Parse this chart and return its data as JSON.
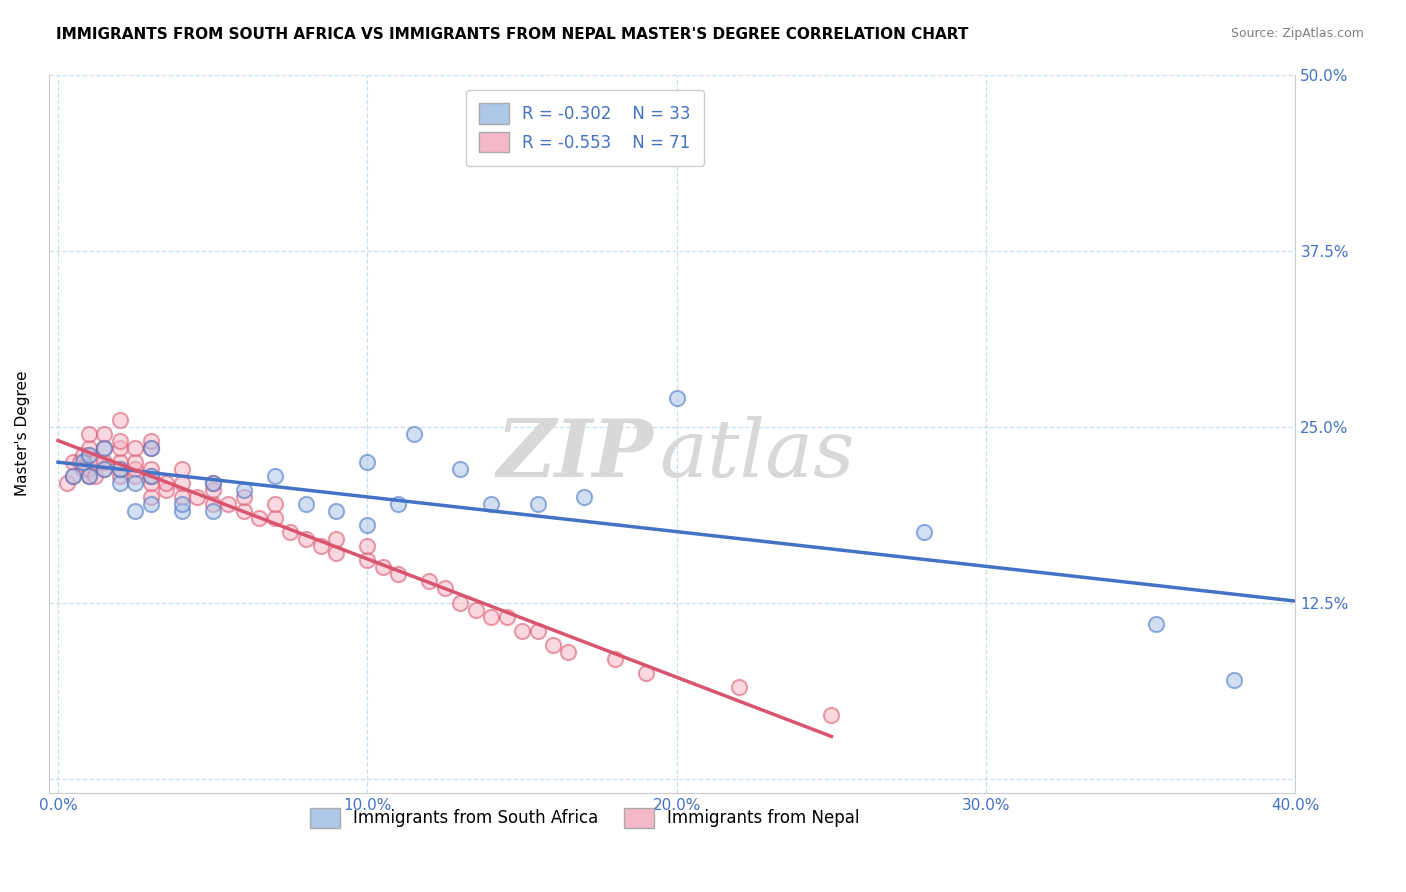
{
  "title": "IMMIGRANTS FROM SOUTH AFRICA VS IMMIGRANTS FROM NEPAL MASTER'S DEGREE CORRELATION CHART",
  "source": "Source: ZipAtlas.com",
  "ylabel": "Master's Degree",
  "xlim": [
    -0.003,
    0.4
  ],
  "ylim": [
    -0.01,
    0.5
  ],
  "xticks": [
    0.0,
    0.1,
    0.2,
    0.3,
    0.4
  ],
  "xticklabels": [
    "0.0%",
    "10.0%",
    "20.0%",
    "30.0%",
    "40.0%"
  ],
  "yticks": [
    0.0,
    0.125,
    0.25,
    0.375,
    0.5
  ],
  "yticklabels_right": [
    "",
    "12.5%",
    "25.0%",
    "37.5%",
    "50.0%"
  ],
  "legend_r_sa": "-0.302",
  "legend_n_sa": "33",
  "legend_r_np": "-0.553",
  "legend_n_np": "71",
  "color_sa": "#aec6e8",
  "color_np": "#f5b8c8",
  "line_color_sa": "#4472c4",
  "line_color_np": "#d9546e",
  "background": "#ffffff",
  "grid_color": "#c8dff0",
  "sa_x": [
    0.005,
    0.008,
    0.01,
    0.01,
    0.015,
    0.015,
    0.02,
    0.02,
    0.025,
    0.025,
    0.03,
    0.03,
    0.03,
    0.04,
    0.04,
    0.05,
    0.05,
    0.06,
    0.07,
    0.08,
    0.09,
    0.1,
    0.1,
    0.11,
    0.115,
    0.13,
    0.14,
    0.155,
    0.17,
    0.2,
    0.28,
    0.355,
    0.38
  ],
  "sa_y": [
    0.215,
    0.225,
    0.215,
    0.23,
    0.22,
    0.235,
    0.21,
    0.22,
    0.19,
    0.21,
    0.195,
    0.215,
    0.235,
    0.19,
    0.195,
    0.19,
    0.21,
    0.205,
    0.215,
    0.195,
    0.19,
    0.18,
    0.225,
    0.195,
    0.245,
    0.22,
    0.195,
    0.195,
    0.2,
    0.27,
    0.175,
    0.11,
    0.07
  ],
  "np_x": [
    0.003,
    0.005,
    0.005,
    0.007,
    0.008,
    0.008,
    0.01,
    0.01,
    0.01,
    0.01,
    0.01,
    0.012,
    0.012,
    0.015,
    0.015,
    0.015,
    0.015,
    0.02,
    0.02,
    0.02,
    0.02,
    0.02,
    0.02,
    0.025,
    0.025,
    0.025,
    0.025,
    0.03,
    0.03,
    0.03,
    0.03,
    0.03,
    0.03,
    0.035,
    0.035,
    0.04,
    0.04,
    0.04,
    0.045,
    0.05,
    0.05,
    0.05,
    0.055,
    0.06,
    0.06,
    0.065,
    0.07,
    0.07,
    0.075,
    0.08,
    0.085,
    0.09,
    0.09,
    0.1,
    0.1,
    0.105,
    0.11,
    0.12,
    0.125,
    0.13,
    0.135,
    0.14,
    0.145,
    0.15,
    0.155,
    0.16,
    0.165,
    0.18,
    0.19,
    0.22,
    0.25
  ],
  "np_y": [
    0.21,
    0.215,
    0.225,
    0.225,
    0.22,
    0.23,
    0.215,
    0.22,
    0.23,
    0.235,
    0.245,
    0.215,
    0.225,
    0.22,
    0.225,
    0.235,
    0.245,
    0.215,
    0.22,
    0.225,
    0.235,
    0.24,
    0.255,
    0.215,
    0.22,
    0.225,
    0.235,
    0.2,
    0.21,
    0.215,
    0.22,
    0.235,
    0.24,
    0.205,
    0.21,
    0.2,
    0.21,
    0.22,
    0.2,
    0.195,
    0.205,
    0.21,
    0.195,
    0.19,
    0.2,
    0.185,
    0.185,
    0.195,
    0.175,
    0.17,
    0.165,
    0.16,
    0.17,
    0.155,
    0.165,
    0.15,
    0.145,
    0.14,
    0.135,
    0.125,
    0.12,
    0.115,
    0.115,
    0.105,
    0.105,
    0.095,
    0.09,
    0.085,
    0.075,
    0.065,
    0.045
  ],
  "title_fontsize": 11,
  "axis_label_fontsize": 11,
  "tick_fontsize": 11,
  "legend_fontsize": 12,
  "source_fontsize": 9,
  "dot_size": 120,
  "dot_alpha": 0.55,
  "dot_linewidth": 1.5
}
